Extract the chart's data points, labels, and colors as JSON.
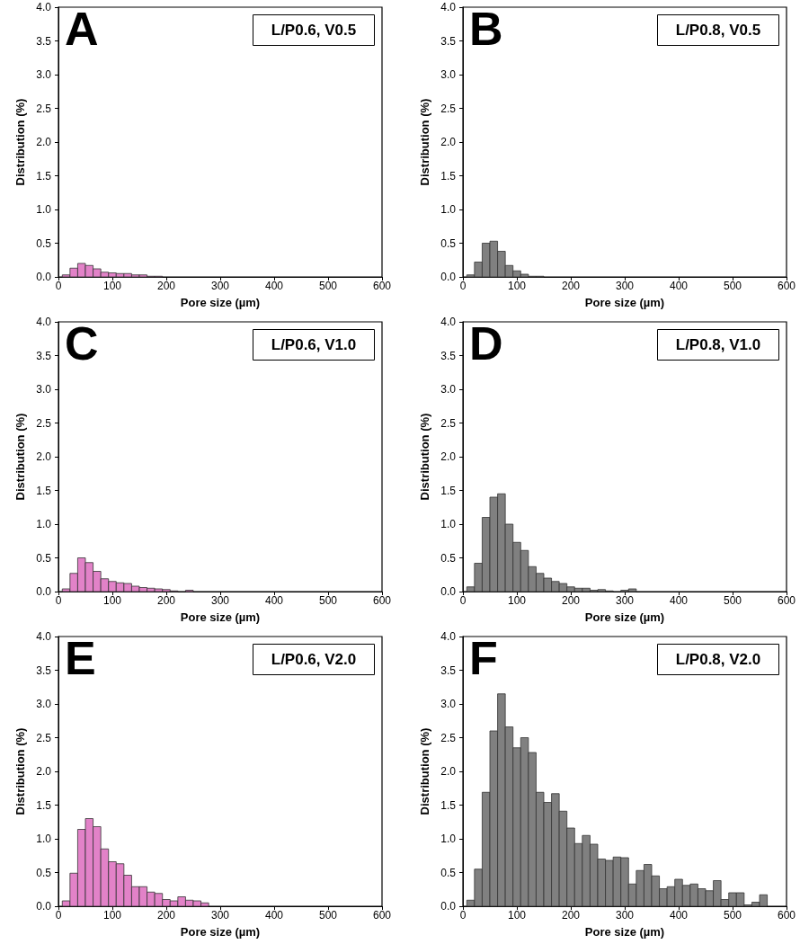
{
  "chart_data": [
    {
      "type": "histogram",
      "xlabel": "Pore size (µm)",
      "ylabel": "Distribution (%)",
      "annotations": [
        "A",
        "L/P0.6, V0.5"
      ],
      "color": "#e282c8",
      "grid": false,
      "xlim": [
        0,
        600
      ],
      "xticks": [
        0,
        100,
        200,
        300,
        400,
        500,
        600
      ],
      "ylim": [
        0,
        4
      ],
      "yticks": [
        {
          "value": 0,
          "label": "0.0"
        },
        0.5,
        {
          "value": 1,
          "label": "1.0"
        },
        1.5,
        {
          "value": 2,
          "label": "2.0"
        },
        2.5,
        {
          "value": 3,
          "label": "3.0"
        },
        3.5,
        {
          "value": 4,
          "label": "4.0"
        }
      ],
      "bins": [
        7.14,
        21.43,
        35.71,
        50,
        64.29,
        78.57,
        92.86,
        107.14,
        121.43,
        135.71,
        150,
        164.29,
        178.57,
        192.86
      ],
      "values": [
        0.03,
        0.13,
        0.2,
        0.17,
        0.12,
        0.07,
        0.06,
        0.05,
        0.05,
        0.03,
        0.03,
        0.01,
        0.01
      ]
    },
    {
      "type": "histogram",
      "xlabel": "Pore size (µm)",
      "ylabel": "Distribution (%)",
      "annotations": [
        "B",
        "L/P0.8, V0.5"
      ],
      "color": "#808080",
      "grid": false,
      "xlim": [
        0,
        600
      ],
      "xticks": [
        0,
        100,
        200,
        300,
        400,
        500,
        600
      ],
      "ylim": [
        0,
        4
      ],
      "yticks": [
        {
          "value": 0,
          "label": "0.0"
        },
        0.5,
        {
          "value": 1,
          "label": "1.0"
        },
        1.5,
        {
          "value": 2,
          "label": "2.0"
        },
        2.5,
        {
          "value": 3,
          "label": "3.0"
        },
        3.5,
        {
          "value": 4,
          "label": "4.0"
        }
      ],
      "bins": [
        7.14,
        21.43,
        35.71,
        50,
        64.29,
        78.57,
        92.86,
        107.14,
        121.43,
        135.71,
        150
      ],
      "values": [
        0.03,
        0.22,
        0.5,
        0.53,
        0.38,
        0.17,
        0.09,
        0.04,
        0.01,
        0.01
      ]
    },
    {
      "type": "histogram",
      "xlabel": "Pore size (µm)",
      "ylabel": "Distribution (%)",
      "annotations": [
        "C",
        "L/P0.6, V1.0"
      ],
      "color": "#e282c8",
      "grid": false,
      "xlim": [
        0,
        600
      ],
      "xticks": [
        0,
        100,
        200,
        300,
        400,
        500,
        600
      ],
      "ylim": [
        0,
        4
      ],
      "yticks": [
        {
          "value": 0,
          "label": "0.0"
        },
        0.5,
        {
          "value": 1,
          "label": "1.0"
        },
        1.5,
        {
          "value": 2,
          "label": "2.0"
        },
        2.5,
        {
          "value": 3,
          "label": "3.0"
        },
        3.5,
        {
          "value": 4,
          "label": "4.0"
        }
      ],
      "bins": [
        7.14,
        21.43,
        35.71,
        50,
        64.29,
        78.57,
        92.86,
        107.14,
        121.43,
        135.71,
        150,
        164.29,
        178.57,
        192.86,
        207.14,
        221.43,
        235.71,
        250
      ],
      "values": [
        0.04,
        0.27,
        0.5,
        0.43,
        0.3,
        0.19,
        0.15,
        0.13,
        0.12,
        0.08,
        0.06,
        0.05,
        0.04,
        0.03,
        0.01,
        0,
        0.02
      ]
    },
    {
      "type": "histogram",
      "xlabel": "Pore size (µm)",
      "ylabel": "Distribution (%)",
      "annotations": [
        "D",
        "L/P0.8, V1.0"
      ],
      "color": "#808080",
      "grid": false,
      "xlim": [
        0,
        600
      ],
      "xticks": [
        0,
        100,
        200,
        300,
        400,
        500,
        600
      ],
      "ylim": [
        0,
        4
      ],
      "yticks": [
        {
          "value": 0,
          "label": "0.0"
        },
        0.5,
        {
          "value": 1,
          "label": "1.0"
        },
        1.5,
        {
          "value": 2,
          "label": "2.0"
        },
        2.5,
        {
          "value": 3,
          "label": "3.0"
        },
        3.5,
        {
          "value": 4,
          "label": "4.0"
        }
      ],
      "bins": [
        7.14,
        21.43,
        35.71,
        50,
        64.29,
        78.57,
        92.86,
        107.14,
        121.43,
        135.71,
        150,
        164.29,
        178.57,
        192.86,
        207.14,
        221.43,
        235.71,
        250,
        264.29,
        278.57,
        292.86,
        307.14,
        321.43
      ],
      "values": [
        0.07,
        0.42,
        1.1,
        1.4,
        1.45,
        1.0,
        0.73,
        0.61,
        0.37,
        0.27,
        0.2,
        0.15,
        0.12,
        0.07,
        0.05,
        0.05,
        0.02,
        0.03,
        0.01,
        0,
        0.02,
        0.04
      ]
    },
    {
      "type": "histogram",
      "xlabel": "Pore size (µm)",
      "ylabel": "Distribution (%)",
      "annotations": [
        "E",
        "L/P0.6, V2.0"
      ],
      "color": "#e282c8",
      "grid": false,
      "xlim": [
        0,
        600
      ],
      "xticks": [
        0,
        100,
        200,
        300,
        400,
        500,
        600
      ],
      "ylim": [
        0,
        4
      ],
      "yticks": [
        {
          "value": 0,
          "label": "0.0"
        },
        0.5,
        {
          "value": 1,
          "label": "1.0"
        },
        1.5,
        {
          "value": 2,
          "label": "2.0"
        },
        2.5,
        {
          "value": 3,
          "label": "3.0"
        },
        3.5,
        {
          "value": 4,
          "label": "4.0"
        }
      ],
      "bins": [
        7.14,
        21.43,
        35.71,
        50,
        64.29,
        78.57,
        92.86,
        107.14,
        121.43,
        135.71,
        150,
        164.29,
        178.57,
        192.86,
        207.14,
        221.43,
        235.71,
        250,
        264.29,
        278.57
      ],
      "values": [
        0.08,
        0.49,
        1.14,
        1.3,
        1.18,
        0.85,
        0.66,
        0.63,
        0.46,
        0.29,
        0.29,
        0.21,
        0.19,
        0.1,
        0.08,
        0.14,
        0.09,
        0.08,
        0.05
      ]
    },
    {
      "type": "histogram",
      "xlabel": "Pore size (µm)",
      "ylabel": "Distribution (%)",
      "annotations": [
        "F",
        "L/P0.8, V2.0"
      ],
      "color": "#808080",
      "grid": false,
      "xlim": [
        0,
        600
      ],
      "xticks": [
        0,
        100,
        200,
        300,
        400,
        500,
        600
      ],
      "ylim": [
        0,
        4
      ],
      "yticks": [
        {
          "value": 0,
          "label": "0.0"
        },
        0.5,
        {
          "value": 1,
          "label": "1.0"
        },
        1.5,
        {
          "value": 2,
          "label": "2.0"
        },
        2.5,
        {
          "value": 3,
          "label": "3.0"
        },
        3.5,
        {
          "value": 4,
          "label": "4.0"
        }
      ],
      "bins": [
        7.14,
        21.43,
        35.71,
        50,
        64.29,
        78.57,
        92.86,
        107.14,
        121.43,
        135.71,
        150,
        164.29,
        178.57,
        192.86,
        207.14,
        221.43,
        235.71,
        250,
        264.29,
        278.57,
        292.86,
        307.14,
        321.43,
        335.71,
        350,
        364.29,
        378.57,
        392.86,
        407.14,
        421.43,
        435.71,
        450,
        464.29,
        478.57,
        492.86,
        507.14,
        521.43,
        535.71,
        550,
        564.29
      ],
      "values": [
        0.09,
        0.55,
        1.69,
        2.6,
        3.15,
        2.66,
        2.35,
        2.5,
        2.28,
        1.69,
        1.54,
        1.67,
        1.41,
        1.16,
        0.93,
        1.05,
        0.92,
        0.7,
        0.68,
        0.73,
        0.72,
        0.33,
        0.53,
        0.62,
        0.45,
        0.26,
        0.29,
        0.4,
        0.31,
        0.33,
        0.26,
        0.23,
        0.38,
        0.1,
        0.2,
        0.2,
        0.02,
        0.06,
        0.17
      ]
    }
  ]
}
